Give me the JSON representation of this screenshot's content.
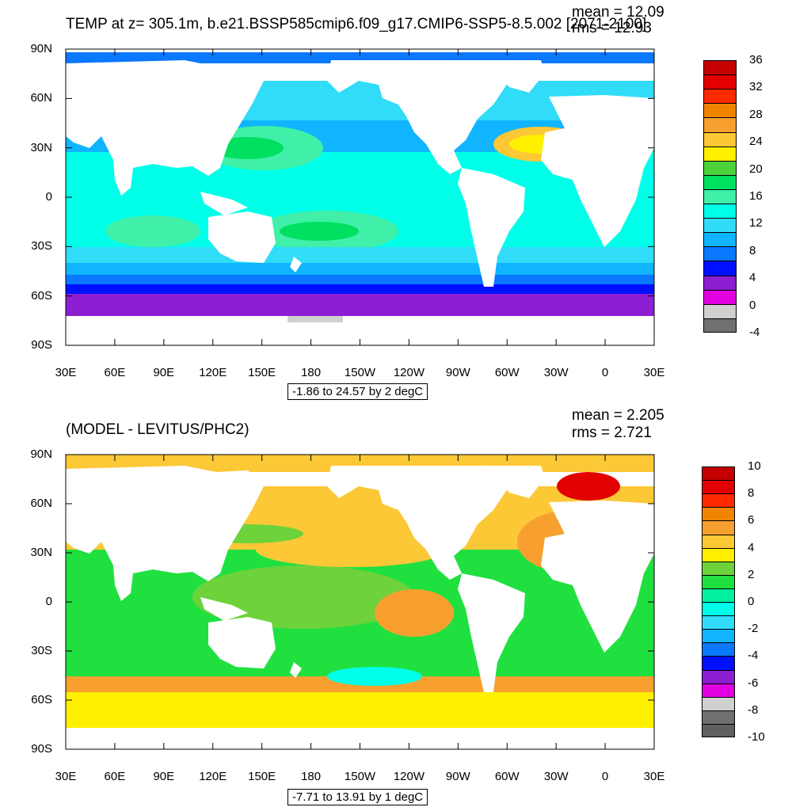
{
  "panels": [
    {
      "title": "TEMP at z= 305.1m, b.e21.BSSP585cmip6.f09_g17.CMIP6-SSP5-8.5.002 [2071-2100]",
      "mean_text": "mean = 12.09",
      "rms_text": "rms = 12.93",
      "range_text": "-1.86 to 24.57 by 2 degC",
      "colorbar": {
        "labels": [
          "36",
          "32",
          "28",
          "24",
          "20",
          "16",
          "12",
          "8",
          "4",
          "0",
          "-4"
        ],
        "colors": [
          "#c40000",
          "#e20000",
          "#ff2a00",
          "#f08400",
          "#f7a030",
          "#fcc836",
          "#fff000",
          "#4ed23a",
          "#00e060",
          "#40f0a8",
          "#00ffe8",
          "#30dcf8",
          "#10b4ff",
          "#0a78ff",
          "#0010ff",
          "#8c1fd2",
          "#e000e0",
          "#d0d0d0",
          "#707070"
        ]
      }
    },
    {
      "title": "(MODEL - LEVITUS/PHC2)",
      "mean_text": "mean = 2.205",
      "rms_text": "rms = 2.721",
      "range_text": "-7.71 to 13.91 by 1 degC",
      "colorbar": {
        "labels": [
          "10",
          "8",
          "6",
          "4",
          "2",
          "0",
          "-2",
          "-4",
          "-6",
          "-8",
          "-10"
        ],
        "colors": [
          "#c40000",
          "#e20000",
          "#ff2a00",
          "#f08400",
          "#f7a030",
          "#fcc836",
          "#fff000",
          "#6ed23a",
          "#20e040",
          "#00f0a0",
          "#00ffe8",
          "#30dcf8",
          "#10b4ff",
          "#0a78ff",
          "#0010ff",
          "#8c1fd2",
          "#e000e0",
          "#d0d0d0",
          "#707070",
          "#606060"
        ]
      }
    }
  ],
  "y_ticks": [
    "90N",
    "60N",
    "30N",
    "0",
    "30S",
    "60S",
    "90S"
  ],
  "x_ticks": [
    "30E",
    "60E",
    "90E",
    "120E",
    "150E",
    "180",
    "150W",
    "120W",
    "90W",
    "60W",
    "30W",
    "0",
    "30E"
  ]
}
